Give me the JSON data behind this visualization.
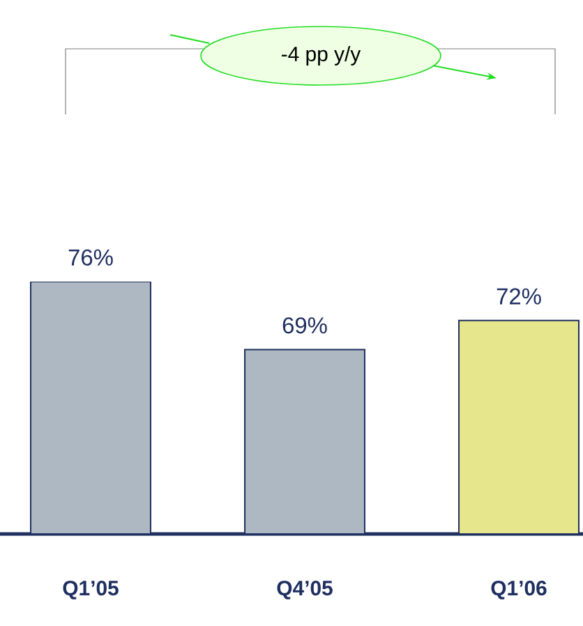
{
  "chart_data": {
    "type": "bar",
    "categories": [
      "Q1’05",
      "Q4’05",
      "Q1’06"
    ],
    "values": [
      76,
      69,
      72
    ],
    "value_labels": [
      "76%",
      "69%",
      "72%"
    ],
    "colors": [
      "#aeb8c2",
      "#aeb8c2",
      "#e6e68c"
    ],
    "ylim": [
      50,
      76
    ],
    "annotations": [
      "-4 pp y/y"
    ]
  }
}
